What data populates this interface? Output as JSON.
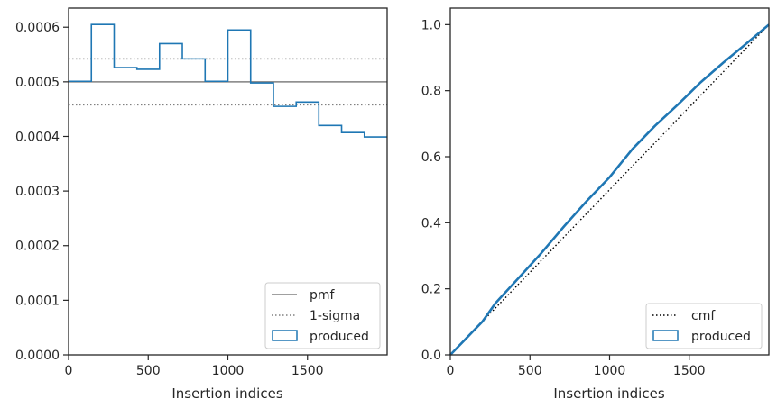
{
  "chart_data": [
    {
      "type": "histogram",
      "xlabel": "Insertion indices",
      "ylabel": "",
      "xlim": [
        0,
        2000
      ],
      "ylim": [
        0,
        0.000635
      ],
      "xticks": [
        0,
        500,
        1000,
        1500
      ],
      "xtick_labels": [
        "0",
        "500",
        "1000",
        "1500"
      ],
      "yticks": [
        0,
        0.0001,
        0.0002,
        0.0003,
        0.0004,
        0.0005,
        0.0006
      ],
      "ytick_labels": [
        "0.0000",
        "0.0001",
        "0.0002",
        "0.0003",
        "0.0004",
        "0.0005",
        "0.0006"
      ],
      "legend_position": "lower-right",
      "pmf": 0.0005,
      "sigma_lower": 0.000458,
      "sigma_upper": 0.000542,
      "bin_edges": [
        0,
        143,
        286,
        429,
        571,
        714,
        857,
        1000,
        1143,
        1286,
        1429,
        1571,
        1714,
        1857,
        2000
      ],
      "bin_values": [
        0.000501,
        0.000605,
        0.000526,
        0.000523,
        0.00057,
        0.000542,
        0.000501,
        0.000595,
        0.000498,
        0.000455,
        0.000463,
        0.00042,
        0.000407,
        0.000399
      ],
      "series": [
        {
          "name": "pmf",
          "color": "#808080",
          "style": "solid"
        },
        {
          "name": "1-sigma",
          "color": "#808080",
          "style": "dotted"
        },
        {
          "name": "produced",
          "color": "#1f77b4",
          "style": "step"
        }
      ]
    },
    {
      "type": "line",
      "xlabel": "Insertion indices",
      "ylabel": "",
      "xlim": [
        0,
        2000
      ],
      "ylim": [
        0,
        1.05
      ],
      "xticks": [
        0,
        500,
        1000,
        1500
      ],
      "xtick_labels": [
        "0",
        "500",
        "1000",
        "1500"
      ],
      "yticks": [
        0,
        0.2,
        0.4,
        0.6,
        0.8,
        1.0
      ],
      "ytick_labels": [
        "0.0",
        "0.2",
        "0.4",
        "0.6",
        "0.8",
        "1.0"
      ],
      "legend_position": "lower-right",
      "series": [
        {
          "name": "cmf",
          "color": "#000000",
          "style": "dotted",
          "x": [
            0,
            2000
          ],
          "y": [
            0,
            1.0
          ]
        },
        {
          "name": "produced",
          "color": "#1f77b4",
          "style": "step",
          "x": [
            0,
            100,
            143,
            200,
            286,
            429,
            571,
            714,
            857,
            1000,
            1143,
            1286,
            1429,
            1571,
            1714,
            1857,
            2000
          ],
          "y": [
            0,
            0.05,
            0.0716,
            0.1,
            0.158,
            0.233,
            0.308,
            0.389,
            0.466,
            0.538,
            0.623,
            0.694,
            0.758,
            0.825,
            0.885,
            0.942,
            1.0
          ]
        }
      ]
    }
  ]
}
